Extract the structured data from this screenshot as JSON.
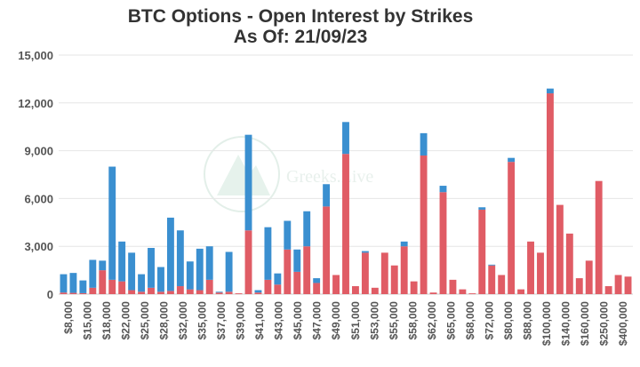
{
  "chart_data": {
    "type": "bar",
    "stacked": true,
    "title": "BTC Options - Open Interest by Strikes",
    "subtitle": "As Of: 21/09/23",
    "xlabel": "",
    "ylabel": "",
    "ylim": [
      0,
      15000
    ],
    "yticks": [
      "0",
      "3,000",
      "6,000",
      "9,000",
      "12,000",
      "15,000"
    ],
    "grid": true,
    "watermark": "Greeks.Live",
    "x_tick_labels": [
      "$8,000",
      "$15,000",
      "$18,000",
      "$22,000",
      "$25,000",
      "$28,000",
      "$32,000",
      "$35,000",
      "$37,000",
      "$39,000",
      "$41,000",
      "$43,000",
      "$45,000",
      "$47,000",
      "$49,000",
      "$51,000",
      "$53,000",
      "$55,000",
      "$58,000",
      "$62,000",
      "$65,000",
      "$68,000",
      "$72,000",
      "$80,000",
      "$88,000",
      "$100,000",
      "$140,000",
      "$160,000",
      "$250,000",
      "$400,000"
    ],
    "series": [
      {
        "color": "#e05c65",
        "values": [
          100,
          80,
          60,
          400,
          1500,
          900,
          800,
          250,
          150,
          400,
          150,
          200,
          500,
          300,
          250,
          900,
          100,
          150,
          50,
          4000,
          100,
          900,
          600,
          2800,
          1400,
          3000,
          700,
          5500,
          1200,
          8800,
          500,
          2600,
          400,
          2600,
          1800,
          3000,
          800,
          8700,
          100,
          6400,
          900,
          300,
          50,
          5300,
          1800,
          1200,
          8300,
          300,
          3300,
          2600,
          12600,
          5600,
          3800,
          1000,
          2100,
          7100,
          500,
          1200,
          1100
        ]
      },
      {
        "color": "#3a8fd0",
        "values": [
          1150,
          1250,
          800,
          1750,
          600,
          7100,
          2500,
          2350,
          1100,
          2500,
          1550,
          4600,
          3500,
          1750,
          2600,
          2100,
          50,
          2500,
          0,
          6000,
          150,
          3300,
          700,
          1800,
          1400,
          2200,
          300,
          1400,
          0,
          2000,
          0,
          100,
          0,
          0,
          0,
          300,
          0,
          1400,
          0,
          400,
          0,
          0,
          0,
          150,
          50,
          0,
          250,
          0,
          0,
          0,
          300,
          0,
          0,
          0,
          0,
          0,
          0,
          0,
          0
        ]
      }
    ]
  }
}
